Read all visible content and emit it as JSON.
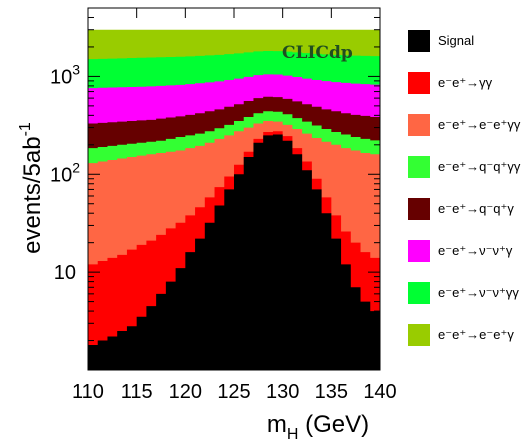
{
  "chart_data": {
    "type": "area",
    "stacked": true,
    "log_y": true,
    "xlabel": "m_H (GeV)",
    "ylabel": "events/5ab^-1",
    "xlim": [
      110,
      140
    ],
    "ylim": [
      1,
      5000
    ],
    "xticks": [
      "110",
      "115",
      "120",
      "125",
      "130",
      "135",
      "140"
    ],
    "yticks": [
      "10",
      "10^2",
      "10^3"
    ],
    "annotation": "CLICdp",
    "x": [
      110,
      111,
      112,
      113,
      114,
      115,
      116,
      117,
      118,
      119,
      120,
      121,
      122,
      123,
      124,
      125,
      126,
      127,
      128,
      129,
      130,
      131,
      132,
      133,
      134,
      135,
      136,
      137,
      138,
      139,
      140
    ],
    "cumulative_series": [
      {
        "name": "Signal",
        "values": [
          1.8,
          2.0,
          2.2,
          2.5,
          2.8,
          3.5,
          4.5,
          6,
          8,
          11,
          16,
          22,
          32,
          48,
          70,
          100,
          150,
          210,
          250,
          255,
          220,
          160,
          110,
          70,
          40,
          22,
          12,
          7,
          5,
          4,
          3.5
        ]
      },
      {
        "name": "e⁻e⁺→γγ",
        "values": [
          12,
          13,
          14,
          15,
          17,
          19,
          21,
          24,
          28,
          32,
          38,
          46,
          58,
          74,
          95,
          125,
          170,
          230,
          270,
          275,
          245,
          185,
          135,
          90,
          58,
          38,
          26,
          20,
          16,
          14,
          12
        ]
      },
      {
        "name": "e⁻e⁺→e⁻e⁺γγ",
        "values": [
          130,
          135,
          140,
          145,
          150,
          155,
          160,
          165,
          170,
          175,
          185,
          195,
          210,
          230,
          250,
          275,
          300,
          330,
          350,
          345,
          320,
          290,
          260,
          235,
          215,
          200,
          185,
          175,
          165,
          160,
          155
        ]
      },
      {
        "name": "e⁻e⁺→q⁻q⁺γγ",
        "values": [
          185,
          190,
          195,
          200,
          205,
          210,
          215,
          220,
          230,
          240,
          250,
          260,
          275,
          295,
          320,
          350,
          385,
          420,
          440,
          435,
          410,
          375,
          345,
          315,
          290,
          270,
          255,
          240,
          230,
          222,
          215
        ]
      },
      {
        "name": "e⁻e⁺→q⁻q⁺γ",
        "values": [
          330,
          335,
          340,
          345,
          350,
          355,
          360,
          370,
          380,
          390,
          405,
          420,
          440,
          460,
          490,
          520,
          560,
          600,
          620,
          615,
          590,
          555,
          520,
          490,
          460,
          440,
          420,
          405,
          395,
          385,
          375
        ]
      },
      {
        "name": "e⁻e⁺→ν⁻ν⁺γ",
        "values": [
          760,
          765,
          770,
          775,
          780,
          785,
          790,
          800,
          810,
          820,
          835,
          850,
          870,
          890,
          920,
          950,
          990,
          1030,
          1050,
          1045,
          1020,
          985,
          950,
          920,
          895,
          875,
          860,
          845,
          835,
          825,
          815
        ]
      },
      {
        "name": "e⁻e⁺→ν⁻ν⁺γγ",
        "values": [
          1500,
          1510,
          1520,
          1530,
          1540,
          1550,
          1560,
          1570,
          1580,
          1590,
          1600,
          1620,
          1640,
          1660,
          1690,
          1720,
          1760,
          1800,
          1820,
          1815,
          1790,
          1760,
          1730,
          1700,
          1680,
          1660,
          1645,
          1630,
          1620,
          1610,
          1600
        ]
      },
      {
        "name": "e⁻e⁺→e⁻e⁺γ",
        "values": [
          3000,
          3000,
          3000,
          3000,
          3000,
          3000,
          3000,
          3000,
          3000,
          3000,
          3000,
          3000,
          3000,
          3000,
          3000,
          3000,
          3000,
          3000,
          3000,
          3000,
          3000,
          3000,
          3000,
          3000,
          3000,
          3000,
          3000,
          3000,
          3000,
          3000,
          3000
        ]
      }
    ],
    "legend": [
      {
        "label": "Signal",
        "color": "#000000"
      },
      {
        "label": "e⁻e⁺→γγ",
        "color": "#ff0000"
      },
      {
        "label": "e⁻e⁺→e⁻e⁺γγ",
        "color": "#ff6644"
      },
      {
        "label": "e⁻e⁺→q⁻q⁺γγ",
        "color": "#33ff33"
      },
      {
        "label": "e⁻e⁺→q⁻q⁺γ",
        "color": "#660000"
      },
      {
        "label": "e⁻e⁺→ν⁻ν⁺γ",
        "color": "#ff00ff"
      },
      {
        "label": "e⁻e⁺→ν⁻ν⁺γγ",
        "color": "#00ff33"
      },
      {
        "label": "e⁻e⁺→e⁻e⁺γ",
        "color": "#99cc00"
      }
    ],
    "legend_position": "right"
  }
}
